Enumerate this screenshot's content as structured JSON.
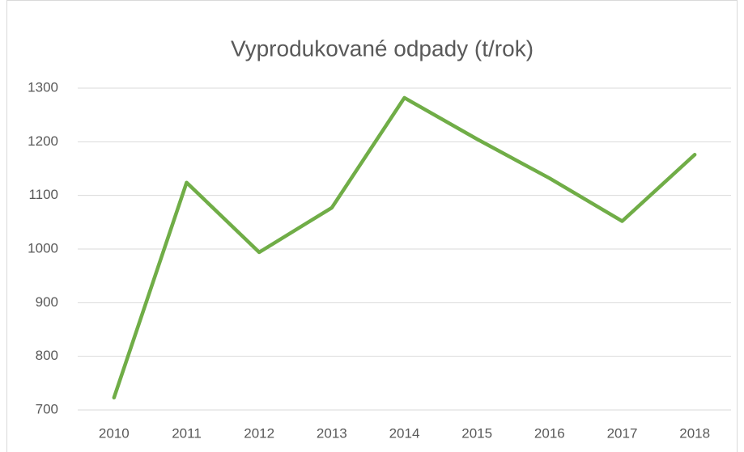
{
  "chart_data": {
    "type": "line",
    "title": "Vyprodukované odpady (t/rok)",
    "categories": [
      "2010",
      "2011",
      "2012",
      "2013",
      "2014",
      "2015",
      "2016",
      "2017",
      "2018"
    ],
    "series": [
      {
        "name": "Vyprodukované odpady",
        "color": "#70ad47",
        "values": [
          723,
          1124,
          994,
          1077,
          1282,
          1205,
          1132,
          1052,
          1176
        ]
      }
    ],
    "ylim": [
      700,
      1300
    ],
    "yticks": [
      700,
      800,
      900,
      1000,
      1100,
      1200,
      1300
    ],
    "grid": true
  }
}
